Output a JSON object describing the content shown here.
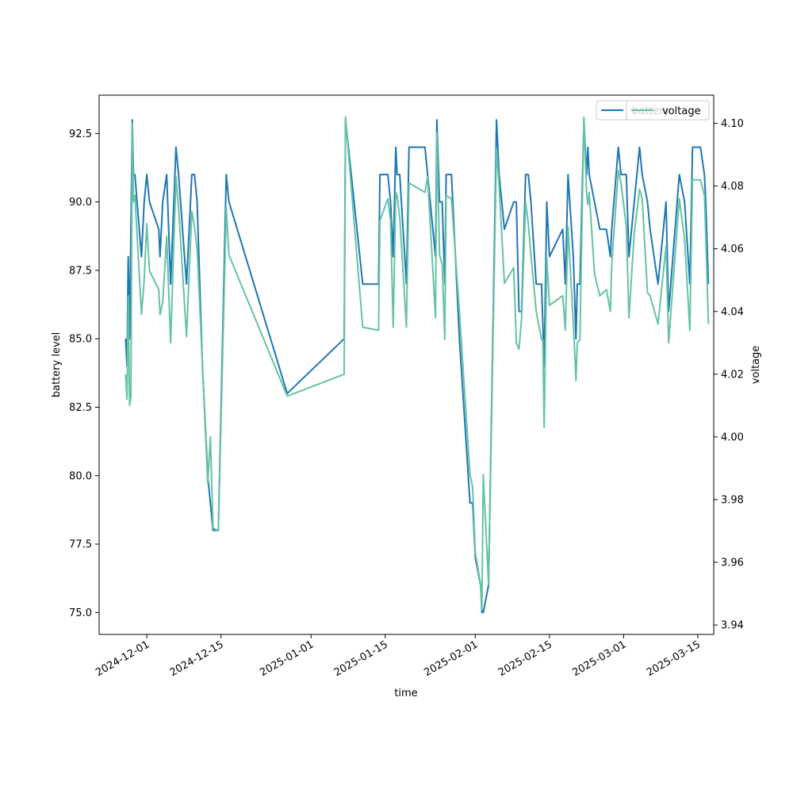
{
  "chart_data": {
    "type": "line",
    "xlabel": "time",
    "ylabel_left": "battery level",
    "ylabel_right": "voltage",
    "x_range": [
      "2024-11-22",
      "2025-03-17"
    ],
    "ylim_left": [
      74.2,
      93.9
    ],
    "ylim_right": [
      3.937,
      4.109
    ],
    "x_ticks": [
      "2024-12-01",
      "2024-12-15",
      "2025-01-01",
      "2025-01-15",
      "2025-02-01",
      "2025-02-15",
      "2025-03-01",
      "2025-03-15"
    ],
    "y_ticks_left": [
      "75.0",
      "77.5",
      "80.0",
      "82.5",
      "85.0",
      "87.5",
      "90.0",
      "92.5"
    ],
    "y_ticks_right": [
      "3.94",
      "3.96",
      "3.98",
      "4.00",
      "4.02",
      "4.04",
      "4.06",
      "4.08",
      "4.10"
    ],
    "legend": {
      "placement": "top-right",
      "entries": [
        "battery",
        "voltage"
      ]
    },
    "series": [
      {
        "name": "battery",
        "axis": "left",
        "color": "#1f77b4",
        "points": [
          [
            "2024-11-27 00:00",
            85
          ],
          [
            "2024-11-27 06:00",
            84
          ],
          [
            "2024-11-27 12:00",
            88
          ],
          [
            "2024-11-27 18:00",
            85
          ],
          [
            "2024-11-28 06:00",
            93
          ],
          [
            "2024-11-28 12:00",
            91
          ],
          [
            "2024-11-28 18:00",
            91
          ],
          [
            "2024-11-30 00:00",
            88
          ],
          [
            "2024-11-30 12:00",
            90
          ],
          [
            "2024-12-01 00:00",
            91
          ],
          [
            "2024-12-01 12:00",
            90
          ],
          [
            "2024-12-03 06:00",
            89
          ],
          [
            "2024-12-03 12:00",
            88
          ],
          [
            "2024-12-04 00:00",
            90
          ],
          [
            "2024-12-04 18:00",
            91
          ],
          [
            "2024-12-05 12:00",
            87
          ],
          [
            "2024-12-06 12:00",
            92
          ],
          [
            "2024-12-07 00:00",
            91
          ],
          [
            "2024-12-08 12:00",
            87
          ],
          [
            "2024-12-09 12:00",
            91
          ],
          [
            "2024-12-10 00:00",
            91
          ],
          [
            "2024-12-10 12:00",
            90
          ],
          [
            "2024-12-11 12:00",
            84
          ],
          [
            "2024-12-12 12:00",
            80
          ],
          [
            "2024-12-13 12:00",
            78
          ],
          [
            "2024-12-14 12:00",
            78
          ],
          [
            "2024-12-16 00:00",
            91
          ],
          [
            "2024-12-16 12:00",
            90
          ],
          [
            "2024-12-27 12:00",
            83
          ],
          [
            "2025-01-07 06:00",
            85
          ],
          [
            "2025-01-07 12:00",
            93
          ],
          [
            "2025-01-10 18:00",
            87
          ],
          [
            "2025-01-13 18:00",
            87
          ],
          [
            "2025-01-14 00:00",
            91
          ],
          [
            "2025-01-15 12:00",
            91
          ],
          [
            "2025-01-16 00:00",
            90
          ],
          [
            "2025-01-16 12:00",
            88
          ],
          [
            "2025-01-17 00:00",
            92
          ],
          [
            "2025-01-17 06:00",
            91
          ],
          [
            "2025-01-17 18:00",
            91
          ],
          [
            "2025-01-19 00:00",
            87
          ],
          [
            "2025-01-19 12:00",
            92
          ],
          [
            "2025-01-22 12:00",
            92
          ],
          [
            "2025-01-24 12:00",
            88
          ],
          [
            "2025-01-24 18:00",
            93
          ],
          [
            "2025-01-25 06:00",
            90
          ],
          [
            "2025-01-25 18:00",
            90
          ],
          [
            "2025-01-26 06:00",
            87
          ],
          [
            "2025-01-26 12:00",
            91
          ],
          [
            "2025-01-27 12:00",
            91
          ],
          [
            "2025-01-29 00:00",
            85
          ],
          [
            "2025-01-31 00:00",
            79
          ],
          [
            "2025-01-31 12:00",
            79
          ],
          [
            "2025-02-01 00:00",
            77
          ],
          [
            "2025-02-02 00:00",
            76
          ],
          [
            "2025-02-02 06:00",
            75
          ],
          [
            "2025-02-02 12:00",
            75
          ],
          [
            "2025-02-03 12:00",
            76
          ],
          [
            "2025-02-05 00:00",
            93
          ],
          [
            "2025-02-05 12:00",
            91
          ],
          [
            "2025-02-06 12:00",
            89
          ],
          [
            "2025-02-08 06:00",
            90
          ],
          [
            "2025-02-08 18:00",
            90
          ],
          [
            "2025-02-09 06:00",
            86
          ],
          [
            "2025-02-09 18:00",
            86
          ],
          [
            "2025-02-10 12:00",
            91
          ],
          [
            "2025-02-11 00:00",
            91
          ],
          [
            "2025-02-11 12:00",
            90
          ],
          [
            "2025-02-12 12:00",
            87
          ],
          [
            "2025-02-13 12:00",
            87
          ],
          [
            "2025-02-14 00:00",
            84
          ],
          [
            "2025-02-14 12:00",
            90
          ],
          [
            "2025-02-15 00:00",
            88
          ],
          [
            "2025-02-17 12:00",
            89
          ],
          [
            "2025-02-18 00:00",
            87
          ],
          [
            "2025-02-18 12:00",
            91
          ],
          [
            "2025-02-19 12:00",
            88
          ],
          [
            "2025-02-20 00:00",
            85
          ],
          [
            "2025-02-20 06:00",
            87
          ],
          [
            "2025-02-20 18:00",
            87
          ],
          [
            "2025-02-21 12:00",
            93
          ],
          [
            "2025-02-22 00:00",
            91
          ],
          [
            "2025-02-22 06:00",
            92
          ],
          [
            "2025-02-22 12:00",
            91
          ],
          [
            "2025-02-23 12:00",
            90
          ],
          [
            "2025-02-24 12:00",
            89
          ],
          [
            "2025-02-25 06:00",
            89
          ],
          [
            "2025-02-25 18:00",
            89
          ],
          [
            "2025-02-26 12:00",
            88
          ],
          [
            "2025-02-26 18:00",
            89
          ],
          [
            "2025-02-28 00:00",
            92
          ],
          [
            "2025-02-28 12:00",
            91
          ],
          [
            "2025-03-01 12:00",
            91
          ],
          [
            "2025-03-02 00:00",
            88
          ],
          [
            "2025-03-03 00:00",
            90
          ],
          [
            "2025-03-04 00:00",
            92
          ],
          [
            "2025-03-04 12:00",
            91
          ],
          [
            "2025-03-05 12:00",
            90
          ],
          [
            "2025-03-06 00:00",
            89
          ],
          [
            "2025-03-07 12:00",
            87
          ],
          [
            "2025-03-09 00:00",
            90
          ],
          [
            "2025-03-09 12:00",
            86
          ],
          [
            "2025-03-11 12:00",
            91
          ],
          [
            "2025-03-12 12:00",
            90
          ],
          [
            "2025-03-13 12:00",
            87
          ],
          [
            "2025-03-14 00:00",
            92
          ],
          [
            "2025-03-15 12:00",
            92
          ],
          [
            "2025-03-16 06:00",
            91
          ],
          [
            "2025-03-16 12:00",
            90
          ],
          [
            "2025-03-17 00:00",
            87
          ]
        ]
      },
      {
        "name": "voltage",
        "axis": "right",
        "color": "#66c2a5",
        "points": [
          [
            "2024-11-27 00:00",
            4.02
          ],
          [
            "2024-11-27 06:00",
            4.012
          ],
          [
            "2024-11-27 12:00",
            4.045
          ],
          [
            "2024-11-27 18:00",
            4.01
          ],
          [
            "2024-11-28 00:00",
            4.013
          ],
          [
            "2024-11-28 06:00",
            4.1
          ],
          [
            "2024-11-28 12:00",
            4.075
          ],
          [
            "2024-11-28 18:00",
            4.077
          ],
          [
            "2024-11-30 00:00",
            4.039
          ],
          [
            "2024-11-30 12:00",
            4.05
          ],
          [
            "2024-12-01 00:00",
            4.068
          ],
          [
            "2024-12-01 12:00",
            4.053
          ],
          [
            "2024-12-03 06:00",
            4.047
          ],
          [
            "2024-12-03 12:00",
            4.039
          ],
          [
            "2024-12-04 00:00",
            4.043
          ],
          [
            "2024-12-04 18:00",
            4.064
          ],
          [
            "2024-12-05 12:00",
            4.03
          ],
          [
            "2024-12-06 12:00",
            4.083
          ],
          [
            "2024-12-07 00:00",
            4.073
          ],
          [
            "2024-12-08 12:00",
            4.032
          ],
          [
            "2024-12-09 12:00",
            4.072
          ],
          [
            "2024-12-10 00:00",
            4.067
          ],
          [
            "2024-12-10 12:00",
            4.06
          ],
          [
            "2024-12-11 12:00",
            4.023
          ],
          [
            "2024-12-12 12:00",
            3.985
          ],
          [
            "2024-12-13 00:00",
            4.0
          ],
          [
            "2024-12-13 12:00",
            3.971
          ],
          [
            "2024-12-14 12:00",
            3.97
          ],
          [
            "2024-12-16 00:00",
            4.073
          ],
          [
            "2024-12-16 12:00",
            4.058
          ],
          [
            "2024-12-27 12:00",
            4.013
          ],
          [
            "2025-01-07 06:00",
            4.02
          ],
          [
            "2025-01-07 12:00",
            4.102
          ],
          [
            "2025-01-10 18:00",
            4.035
          ],
          [
            "2025-01-13 18:00",
            4.034
          ],
          [
            "2025-01-14 00:00",
            4.069
          ],
          [
            "2025-01-15 12:00",
            4.076
          ],
          [
            "2025-01-16 00:00",
            4.069
          ],
          [
            "2025-01-16 12:00",
            4.035
          ],
          [
            "2025-01-17 00:00",
            4.078
          ],
          [
            "2025-01-17 06:00",
            4.077
          ],
          [
            "2025-01-17 18:00",
            4.07
          ],
          [
            "2025-01-19 00:00",
            4.035
          ],
          [
            "2025-01-19 12:00",
            4.081
          ],
          [
            "2025-01-22 12:00",
            4.078
          ],
          [
            "2025-01-23 00:00",
            4.083
          ],
          [
            "2025-01-24 12:00",
            4.038
          ],
          [
            "2025-01-24 18:00",
            4.097
          ],
          [
            "2025-01-25 06:00",
            4.058
          ],
          [
            "2025-01-25 18:00",
            4.055
          ],
          [
            "2025-01-26 06:00",
            4.031
          ],
          [
            "2025-01-26 12:00",
            4.077
          ],
          [
            "2025-01-27 12:00",
            4.076
          ],
          [
            "2025-01-29 00:00",
            4.04
          ],
          [
            "2025-01-31 00:00",
            3.988
          ],
          [
            "2025-01-31 12:00",
            3.984
          ],
          [
            "2025-02-01 00:00",
            3.963
          ],
          [
            "2025-02-02 00:00",
            3.953
          ],
          [
            "2025-02-02 06:00",
            3.945
          ],
          [
            "2025-02-02 12:00",
            3.988
          ],
          [
            "2025-02-03 12:00",
            3.953
          ],
          [
            "2025-02-05 00:00",
            4.092
          ],
          [
            "2025-02-05 12:00",
            4.08
          ],
          [
            "2025-02-06 12:00",
            4.049
          ],
          [
            "2025-02-08 06:00",
            4.054
          ],
          [
            "2025-02-08 18:00",
            4.03
          ],
          [
            "2025-02-09 06:00",
            4.028
          ],
          [
            "2025-02-09 18:00",
            4.038
          ],
          [
            "2025-02-10 12:00",
            4.075
          ],
          [
            "2025-02-11 00:00",
            4.068
          ],
          [
            "2025-02-11 12:00",
            4.058
          ],
          [
            "2025-02-12 12:00",
            4.04
          ],
          [
            "2025-02-13 12:00",
            4.031
          ],
          [
            "2025-02-13 18:00",
            4.031
          ],
          [
            "2025-02-14 00:00",
            4.003
          ],
          [
            "2025-02-14 12:00",
            4.057
          ],
          [
            "2025-02-15 00:00",
            4.042
          ],
          [
            "2025-02-17 12:00",
            4.045
          ],
          [
            "2025-02-18 00:00",
            4.034
          ],
          [
            "2025-02-18 12:00",
            4.067
          ],
          [
            "2025-02-19 12:00",
            4.036
          ],
          [
            "2025-02-20 00:00",
            4.018
          ],
          [
            "2025-02-20 06:00",
            4.03
          ],
          [
            "2025-02-20 18:00",
            4.031
          ],
          [
            "2025-02-21 12:00",
            4.102
          ],
          [
            "2025-02-22 00:00",
            4.078
          ],
          [
            "2025-02-22 06:00",
            4.074
          ],
          [
            "2025-02-22 12:00",
            4.078
          ],
          [
            "2025-02-23 12:00",
            4.052
          ],
          [
            "2025-02-24 12:00",
            4.045
          ],
          [
            "2025-02-25 18:00",
            4.047
          ],
          [
            "2025-02-26 12:00",
            4.04
          ],
          [
            "2025-02-26 18:00",
            4.055
          ],
          [
            "2025-02-28 00:00",
            4.085
          ],
          [
            "2025-02-28 12:00",
            4.081
          ],
          [
            "2025-03-01 12:00",
            4.067
          ],
          [
            "2025-03-02 00:00",
            4.038
          ],
          [
            "2025-03-03 00:00",
            4.065
          ],
          [
            "2025-03-04 00:00",
            4.079
          ],
          [
            "2025-03-04 12:00",
            4.076
          ],
          [
            "2025-03-05 12:00",
            4.046
          ],
          [
            "2025-03-06 00:00",
            4.045
          ],
          [
            "2025-03-07 12:00",
            4.036
          ],
          [
            "2025-03-09 00:00",
            4.061
          ],
          [
            "2025-03-09 12:00",
            4.03
          ],
          [
            "2025-03-11 12:00",
            4.076
          ],
          [
            "2025-03-12 12:00",
            4.063
          ],
          [
            "2025-03-13 12:00",
            4.034
          ],
          [
            "2025-03-14 00:00",
            4.082
          ],
          [
            "2025-03-15 12:00",
            4.082
          ],
          [
            "2025-03-16 06:00",
            4.077
          ],
          [
            "2025-03-16 12:00",
            4.064
          ],
          [
            "2025-03-17 00:00",
            4.036
          ]
        ]
      }
    ]
  }
}
